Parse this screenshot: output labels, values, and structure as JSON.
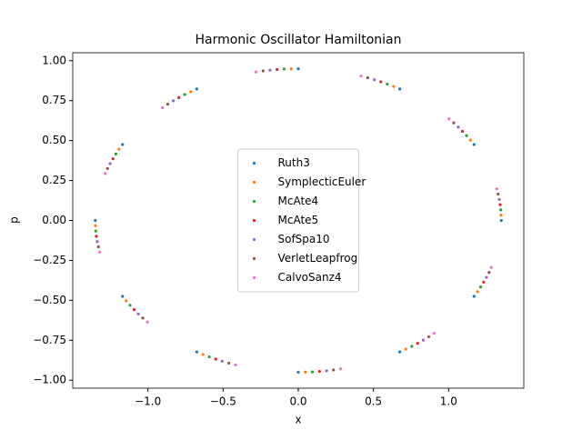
{
  "chart_data": {
    "type": "scatter",
    "title": "Harmonic Oscillator Hamiltonian",
    "x_label": "x",
    "y_label": "p",
    "xlim": [
      -1.5,
      1.5
    ],
    "ylim": [
      -1.05,
      1.05
    ],
    "xticks": [
      {
        "value": -1,
        "label": "−1.0"
      },
      {
        "value": -0.5,
        "label": "−0.5"
      },
      {
        "value": 0,
        "label": "0.0"
      },
      {
        "value": 0.5,
        "label": "0.5"
      },
      {
        "value": 1,
        "label": "1.0"
      }
    ],
    "yticks": [
      {
        "value": -1,
        "label": "−1.00"
      },
      {
        "value": -0.75,
        "label": "−0.75"
      },
      {
        "value": -0.5,
        "label": "−0.50"
      },
      {
        "value": -0.25,
        "label": "−0.25"
      },
      {
        "value": 0,
        "label": "0.00"
      },
      {
        "value": 0.25,
        "label": "0.25"
      },
      {
        "value": 0.5,
        "label": "0.50"
      },
      {
        "value": 0.75,
        "label": "0.75"
      },
      {
        "value": 1,
        "label": "1.00"
      }
    ],
    "legend": "center",
    "grid": false,
    "series": [
      {
        "name": "Ruth3",
        "color": "#1f77b4",
        "x": [
          1.35,
          1.169,
          0.675,
          0,
          -0.675,
          -1.169,
          -1.35,
          -1.169,
          -0.675,
          0,
          0.675,
          1.169
        ],
        "values": [
          0,
          0.475,
          0.823,
          0.95,
          0.823,
          0.475,
          0,
          -0.475,
          -0.823,
          -0.95,
          -0.823,
          -0.475
        ]
      },
      {
        "name": "SymplecticEuler",
        "color": "#ff7f0e",
        "x": [
          1.349,
          1.145,
          0.634,
          -0.047,
          -0.715,
          -1.192,
          -1.349,
          -1.145,
          -0.634,
          0.047,
          0.715,
          1.192
        ],
        "values": [
          0.033,
          0.503,
          0.839,
          0.949,
          0.806,
          0.446,
          -0.033,
          -0.503,
          -0.839,
          -0.949,
          -0.806,
          -0.446
        ]
      },
      {
        "name": "McAte4",
        "color": "#2ca02c",
        "x": [
          1.347,
          1.119,
          0.592,
          -0.094,
          -0.755,
          -1.213,
          -1.347,
          -1.119,
          -0.592,
          0.094,
          0.755,
          1.213
        ],
        "values": [
          0.066,
          0.531,
          0.854,
          0.948,
          0.788,
          0.416,
          -0.066,
          -0.531,
          -0.854,
          -0.948,
          -0.788,
          -0.416
        ]
      },
      {
        "name": "McAte5",
        "color": "#d62728",
        "x": [
          1.343,
          1.092,
          0.549,
          -0.141,
          -0.794,
          -1.233,
          -1.343,
          -1.092,
          -0.549,
          0.141,
          0.794,
          1.233
        ],
        "values": [
          0.099,
          0.558,
          0.868,
          0.945,
          0.769,
          0.386,
          -0.099,
          -0.558,
          -0.868,
          -0.945,
          -0.769,
          -0.386
        ]
      },
      {
        "name": "SofSpa10",
        "color": "#9467bd",
        "x": [
          1.337,
          1.064,
          0.506,
          -0.188,
          -0.831,
          -1.252,
          -1.337,
          -1.064,
          -0.506,
          0.188,
          0.831,
          1.252
        ],
        "values": [
          0.132,
          0.585,
          0.881,
          0.941,
          0.749,
          0.356,
          -0.132,
          -0.585,
          -0.881,
          -0.941,
          -0.749,
          -0.356
        ]
      },
      {
        "name": "VerletLeapfrog",
        "color": "#8c564b",
        "x": [
          1.329,
          1.034,
          0.462,
          -0.234,
          -0.868,
          -1.269,
          -1.329,
          -1.034,
          -0.462,
          0.234,
          0.868,
          1.269
        ],
        "values": [
          0.165,
          0.611,
          0.893,
          0.936,
          0.728,
          0.325,
          -0.165,
          -0.611,
          -0.893,
          -0.936,
          -0.728,
          -0.325
        ]
      },
      {
        "name": "CalvoSanz4",
        "color": "#e377c2",
        "x": [
          1.32,
          1.003,
          0.417,
          -0.281,
          -0.903,
          -1.284,
          -1.32,
          -1.003,
          -0.417,
          0.281,
          0.903,
          1.284
        ],
        "values": [
          0.198,
          0.636,
          0.904,
          0.929,
          0.706,
          0.294,
          -0.198,
          -0.636,
          -0.904,
          -0.929,
          -0.706,
          -0.294
        ]
      }
    ]
  }
}
